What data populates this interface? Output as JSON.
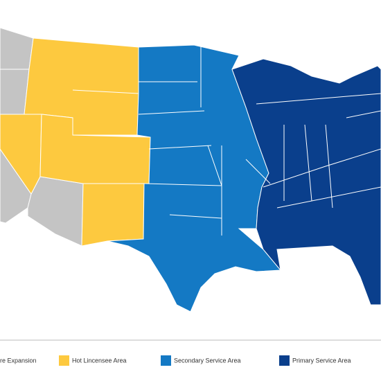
{
  "legend": {
    "items": [
      {
        "label": "ure Expansion",
        "color": "#c4c4c4"
      },
      {
        "label": "Hot Lincensee Area",
        "color": "#fdc93f"
      },
      {
        "label": "Secondary Service Area",
        "color": "#1479c4"
      },
      {
        "label": "Primary Service Area",
        "color": "#0a3f8c"
      }
    ]
  }
}
